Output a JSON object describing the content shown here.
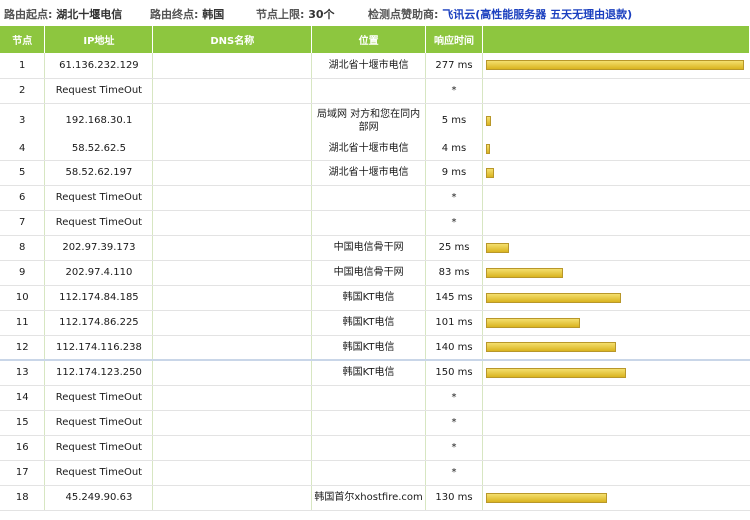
{
  "header": {
    "start_label": "路由起点:",
    "start_value": "湖北十堰电信",
    "end_label": "路由终点:",
    "end_value": "韩国",
    "limit_label": "节点上限:",
    "limit_value": "30个",
    "sponsor_label": "检测点赞助商:",
    "sponsor_name": "飞讯云",
    "sponsor_ad": "(高性能服务器 五天无理由退款)"
  },
  "columns": [
    "节点",
    "IP地址",
    "DNS名称",
    "位置",
    "响应时间",
    ""
  ],
  "rows": [
    {
      "node": "1",
      "ip": "61.136.232.129",
      "dns": "",
      "loc": "湖北省十堰市电信",
      "time": "277 ms",
      "ms": 277
    },
    {
      "node": "2",
      "ip": "Request TimeOut",
      "dns": "",
      "loc": "",
      "time": "*",
      "ms": null
    },
    {
      "node": "3",
      "ip": "192.168.30.1",
      "dns": "",
      "loc": "局域网 对方和您在同内部网",
      "time": "5 ms",
      "ms": 5
    },
    {
      "node": "4",
      "ip": "58.52.62.5",
      "dns": "",
      "loc": "湖北省十堰市电信",
      "time": "4 ms",
      "ms": 4
    },
    {
      "node": "5",
      "ip": "58.52.62.197",
      "dns": "",
      "loc": "湖北省十堰市电信",
      "time": "9 ms",
      "ms": 9
    },
    {
      "node": "6",
      "ip": "Request TimeOut",
      "dns": "",
      "loc": "",
      "time": "*",
      "ms": null
    },
    {
      "node": "7",
      "ip": "Request TimeOut",
      "dns": "",
      "loc": "",
      "time": "*",
      "ms": null
    },
    {
      "node": "8",
      "ip": "202.97.39.173",
      "dns": "",
      "loc": "中国电信骨干网",
      "time": "25 ms",
      "ms": 25
    },
    {
      "node": "9",
      "ip": "202.97.4.110",
      "dns": "",
      "loc": "中国电信骨干网",
      "time": "83 ms",
      "ms": 83
    },
    {
      "node": "10",
      "ip": "112.174.84.185",
      "dns": "",
      "loc": "韩国KT电信",
      "time": "145 ms",
      "ms": 145
    },
    {
      "node": "11",
      "ip": "112.174.86.225",
      "dns": "",
      "loc": "韩国KT电信",
      "time": "101 ms",
      "ms": 101
    },
    {
      "node": "12",
      "ip": "112.174.116.238",
      "dns": "",
      "loc": "韩国KT电信",
      "time": "140 ms",
      "ms": 140
    },
    {
      "node": "13",
      "ip": "112.174.123.250",
      "dns": "",
      "loc": "韩国KT电信",
      "time": "150 ms",
      "ms": 150
    },
    {
      "node": "14",
      "ip": "Request TimeOut",
      "dns": "",
      "loc": "",
      "time": "*",
      "ms": null
    },
    {
      "node": "15",
      "ip": "Request TimeOut",
      "dns": "",
      "loc": "",
      "time": "*",
      "ms": null
    },
    {
      "node": "16",
      "ip": "Request TimeOut",
      "dns": "",
      "loc": "",
      "time": "*",
      "ms": null
    },
    {
      "node": "17",
      "ip": "Request TimeOut",
      "dns": "",
      "loc": "",
      "time": "*",
      "ms": null
    },
    {
      "node": "18",
      "ip": "45.249.90.63",
      "dns": "",
      "loc": "韩国首尔xhostfire.com",
      "time": "130 ms",
      "ms": 130
    }
  ],
  "bar_max_ms": 277,
  "colors": {
    "header_green": "#8dc63f",
    "bar_fill": "#e8c94a",
    "sponsor_link": "#1a3fbf"
  }
}
